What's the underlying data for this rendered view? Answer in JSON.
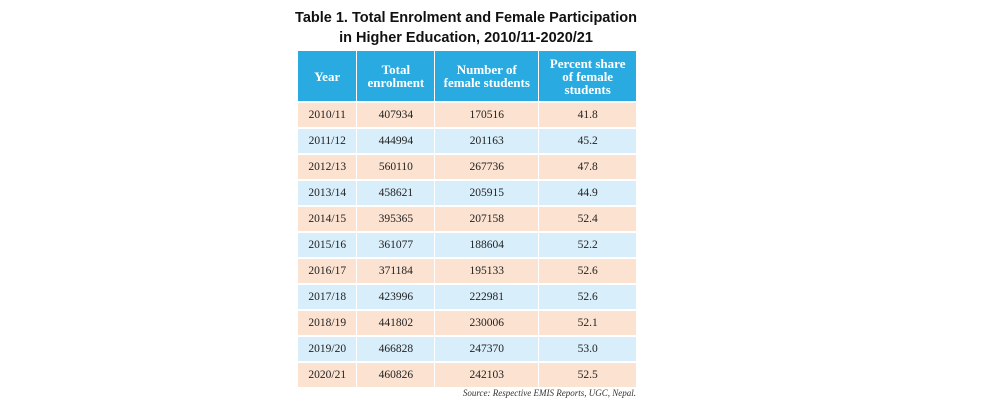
{
  "title": [
    "Table 1. Total Enrolment and Female Participation",
    "in Higher Education, 2010/11-2020/21"
  ],
  "table": {
    "header": [
      "Year",
      "Total enrolment",
      "Number of female students",
      "Percent share of female students"
    ],
    "rows": [
      [
        "2010/11",
        "407934",
        "170516",
        "41.8"
      ],
      [
        "2011/12",
        "444994",
        "201163",
        "45.2"
      ],
      [
        "2012/13",
        "560110",
        "267736",
        "47.8"
      ],
      [
        "2013/14",
        "458621",
        "205915",
        "44.9"
      ],
      [
        "2014/15",
        "395365",
        "207158",
        "52.4"
      ],
      [
        "2015/16",
        "361077",
        "188604",
        "52.2"
      ],
      [
        "2016/17",
        "371184",
        "195133",
        "52.6"
      ],
      [
        "2017/18",
        "423996",
        "222981",
        "52.6"
      ],
      [
        "2018/19",
        "441802",
        "230006",
        "52.1"
      ],
      [
        "2019/20",
        "466828",
        "247370",
        "53.0"
      ],
      [
        "2020/21",
        "460826",
        "242103",
        "52.5"
      ]
    ]
  },
  "source": "Source: Respective EMIS Reports, UGC, Nepal."
}
